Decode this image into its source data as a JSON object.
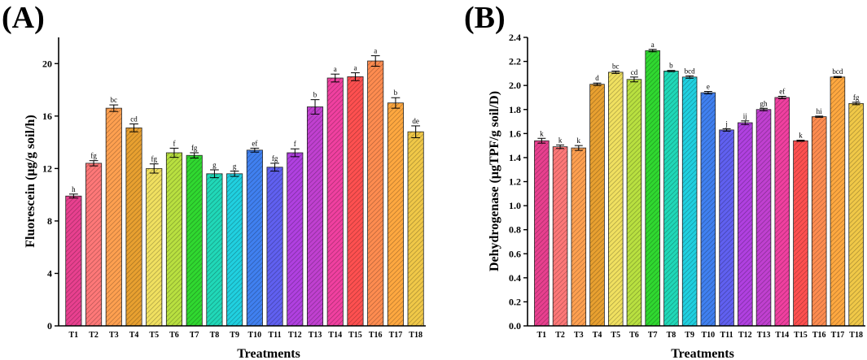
{
  "colors": [
    "#e8408f",
    "#ff7878",
    "#ffa050",
    "#e8a030",
    "#f0e060",
    "#b8e040",
    "#30d830",
    "#20d8b8",
    "#20d0e0",
    "#4080f0",
    "#6060f0",
    "#b040e0",
    "#c040d0",
    "#f040a0",
    "#ff5050",
    "#ff8c50",
    "#ffa840",
    "#f0c848"
  ],
  "chart_data": [
    {
      "type": "bar",
      "panel_label": "(A)",
      "ylabel": "Fluorescein (μg/g soil/h)",
      "xlabel": "Treatments",
      "categories": [
        "T1",
        "T2",
        "T3",
        "T4",
        "T5",
        "T6",
        "T7",
        "T8",
        "T9",
        "T10",
        "T11",
        "T12",
        "T13",
        "T14",
        "T15",
        "T16",
        "T17",
        "T18"
      ],
      "values": [
        9.9,
        12.4,
        16.6,
        15.1,
        12.0,
        13.2,
        13.0,
        11.6,
        11.6,
        13.4,
        12.1,
        13.2,
        16.7,
        18.9,
        19.0,
        20.2,
        17.0,
        14.8
      ],
      "errors": [
        0.15,
        0.2,
        0.25,
        0.3,
        0.35,
        0.35,
        0.2,
        0.3,
        0.2,
        0.15,
        0.3,
        0.3,
        0.55,
        0.3,
        0.3,
        0.4,
        0.4,
        0.45
      ],
      "letters": [
        "h",
        "fg",
        "bc",
        "cd",
        "fg",
        "f",
        "fg",
        "g",
        "g",
        "ef",
        "fg",
        "f",
        "b",
        "a",
        "a",
        "a",
        "b",
        "de"
      ],
      "ylim": [
        0,
        22
      ],
      "yticks": [
        0,
        4,
        8,
        12,
        16,
        20
      ]
    },
    {
      "type": "bar",
      "panel_label": "(B)",
      "ylabel": "Dehydrogenase (μgTPF/g soil/D)",
      "xlabel": "Treatments",
      "categories": [
        "T1",
        "T2",
        "T3",
        "T4",
        "T5",
        "T6",
        "T7",
        "T8",
        "T9",
        "T10",
        "T11",
        "T12",
        "T13",
        "T14",
        "T15",
        "T16",
        "T17",
        "T18"
      ],
      "values": [
        1.54,
        1.49,
        1.48,
        2.01,
        2.11,
        2.05,
        2.29,
        2.12,
        2.07,
        1.94,
        1.63,
        1.69,
        1.8,
        1.9,
        1.54,
        1.74,
        2.07,
        1.85
      ],
      "errors": [
        0.02,
        0.015,
        0.02,
        0.01,
        0.01,
        0.02,
        0.01,
        0.005,
        0.01,
        0.01,
        0.01,
        0.015,
        0.01,
        0.01,
        0.005,
        0.005,
        0.005,
        0.01
      ],
      "letters": [
        "k",
        "k",
        "k",
        "d",
        "bc",
        "cd",
        "a",
        "b",
        "bcd",
        "e",
        "j",
        "ij",
        "gh",
        "ef",
        "k",
        "hi",
        "bcd",
        "fg"
      ],
      "ylim": [
        0,
        2.4
      ],
      "yticks": [
        "0.0",
        "0.2",
        "0.4",
        "0.6",
        "0.8",
        "1.0",
        "1.2",
        "1.4",
        "1.6",
        "1.8",
        "2.0",
        "2.2",
        "2.4"
      ]
    }
  ]
}
